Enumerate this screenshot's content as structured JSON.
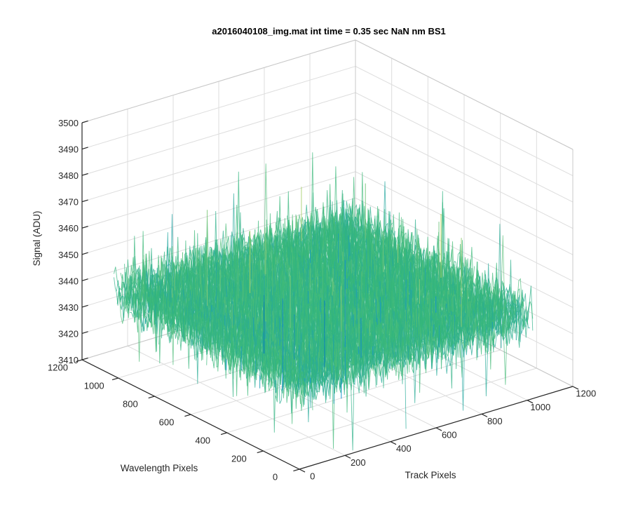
{
  "chart_data": {
    "type": "surface",
    "title": "a2016040108_img.mat int time = 0.35 sec  NaN nm BS1",
    "x_axis": {
      "label": "Track Pixels",
      "range": [
        0,
        1200
      ],
      "ticks": [
        0,
        200,
        400,
        600,
        800,
        1000,
        1200
      ],
      "tick_labels": [
        "0",
        "200",
        "400",
        "600",
        "800",
        "1000",
        "1200"
      ]
    },
    "y_axis": {
      "label": "Wavelength Pixels",
      "range": [
        0,
        1200
      ],
      "ticks": [
        0,
        200,
        400,
        600,
        800,
        1000,
        1200
      ],
      "tick_labels": [
        "0",
        "200",
        "400",
        "600",
        "800",
        "1000",
        "1200"
      ]
    },
    "z_axis": {
      "label": "Signal (ADU)",
      "range": [
        3410,
        3500
      ],
      "ticks": [
        3410,
        3420,
        3430,
        3440,
        3450,
        3460,
        3470,
        3480,
        3490,
        3500
      ],
      "tick_labels": [
        "3410",
        "3420",
        "3430",
        "3440",
        "3450",
        "3460",
        "3470",
        "3480",
        "3490",
        "3500"
      ]
    },
    "surface": {
      "data_extent": {
        "x": [
          0,
          1024
        ],
        "y": [
          0,
          1024
        ]
      },
      "mean_signal": 3442,
      "noise_spread": 13,
      "colormap": [
        "#0072BD",
        "#1696D2",
        "#35B779",
        "#7FC97F",
        "#EDD83D"
      ]
    },
    "grid": true,
    "legend": "none",
    "colors": {
      "axis": "#262626",
      "grid": "#dddddd",
      "background": "#ffffff"
    }
  }
}
